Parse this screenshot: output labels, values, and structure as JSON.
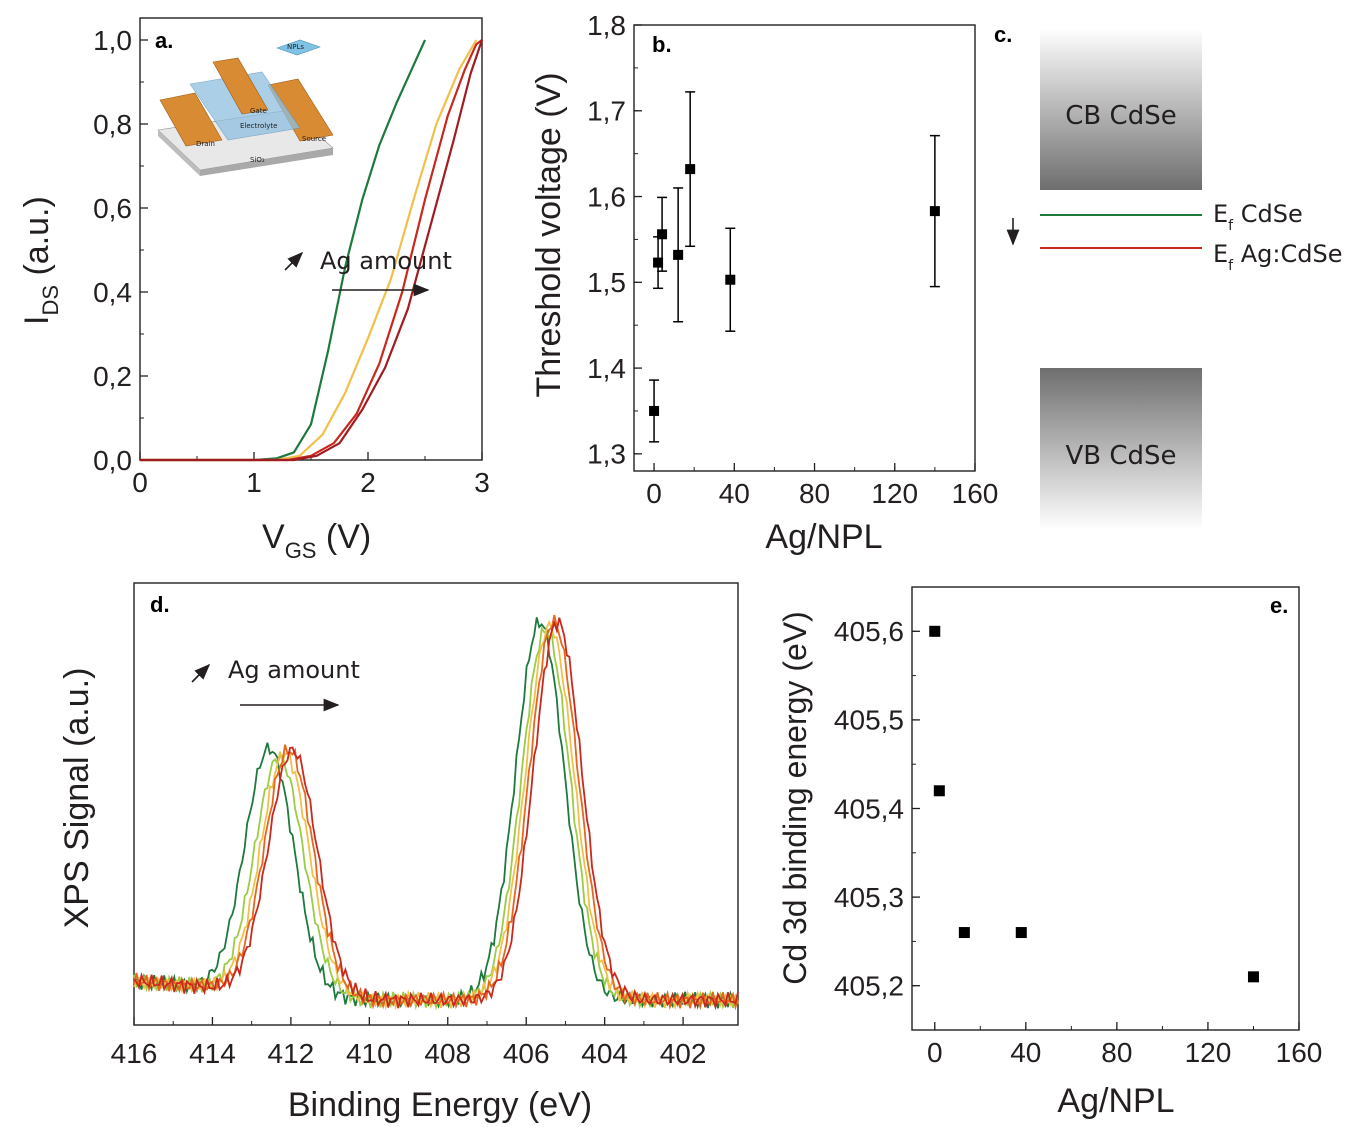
{
  "colors": {
    "axis": "#231f20",
    "green": "#1d7a3c",
    "yellow": "#f2c04a",
    "red": "#c8281e",
    "darkred": "#a01c22",
    "lightgreen": "#9ccc45",
    "orange": "#e6661e"
  },
  "panel_a": {
    "label": "a.",
    "annotation": "Ag amount",
    "annotation_icon": "arrow-up-right-icon",
    "inset": {
      "npls_label": "NPLs",
      "gate_label": "Gate",
      "electrolyte_label": "Electrolyte",
      "drain_label": "Drain",
      "source_label": "Source",
      "substrate_label": "SiO₂"
    },
    "xlabel_main": "V",
    "xlabel_sub": "GS",
    "xlabel_unit": " (V)",
    "ylabel_main": "I",
    "ylabel_sub": "DS",
    "ylabel_unit": " (a.u.)"
  },
  "panel_b": {
    "label": "b.",
    "xlabel": "Ag/NPL",
    "ylabel": "Threshold voltage (V)"
  },
  "panel_c": {
    "label": "c.",
    "cb_label": "CB CdSe",
    "vb_label": "VB CdSe",
    "ef1_main": "E",
    "ef1_sub": "f",
    "ef1_text": " CdSe",
    "ef2_main": "E",
    "ef2_sub": "f",
    "ef2_text": " Ag:CdSe",
    "shift_icon": "arrow-down-icon"
  },
  "panel_d": {
    "label": "d.",
    "annotation": "Ag amount",
    "annotation_icon": "arrow-up-right-icon",
    "xlabel": "Binding Energy (eV)",
    "ylabel": "XPS Signal (a.u.)"
  },
  "panel_e": {
    "label": "e.",
    "xlabel": "Ag/NPL",
    "ylabel": "Cd 3d binding energy (eV)"
  },
  "chart_data": [
    {
      "panel": "a",
      "type": "line",
      "xlim": [
        0,
        3
      ],
      "ylim": [
        0,
        1
      ],
      "x_ticks": [
        "0",
        "1",
        "2",
        "3"
      ],
      "y_ticks": [
        "0,0",
        "0,2",
        "0,4",
        "0,6",
        "0,8",
        "1,0"
      ],
      "series": [
        {
          "color": "green",
          "values": [
            [
              0,
              0
            ],
            [
              1,
              0
            ],
            [
              1.2,
              0.004
            ],
            [
              1.35,
              0.018
            ],
            [
              1.5,
              0.085
            ],
            [
              1.65,
              0.26
            ],
            [
              1.8,
              0.46
            ],
            [
              1.95,
              0.62
            ],
            [
              2.1,
              0.75
            ],
            [
              2.25,
              0.85
            ],
            [
              2.4,
              0.94
            ],
            [
              2.5,
              1.0
            ]
          ]
        },
        {
          "color": "yellow",
          "values": [
            [
              0,
              0
            ],
            [
              1.2,
              0
            ],
            [
              1.4,
              0.01
            ],
            [
              1.6,
              0.06
            ],
            [
              1.8,
              0.16
            ],
            [
              2.0,
              0.29
            ],
            [
              2.2,
              0.43
            ],
            [
              2.4,
              0.62
            ],
            [
              2.6,
              0.8
            ],
            [
              2.8,
              0.93
            ],
            [
              2.95,
              1.0
            ]
          ]
        },
        {
          "color": "red",
          "values": [
            [
              0,
              0
            ],
            [
              1.3,
              0
            ],
            [
              1.5,
              0.01
            ],
            [
              1.7,
              0.04
            ],
            [
              1.9,
              0.11
            ],
            [
              2.1,
              0.23
            ],
            [
              2.3,
              0.4
            ],
            [
              2.5,
              0.62
            ],
            [
              2.7,
              0.82
            ],
            [
              2.85,
              0.93
            ],
            [
              2.95,
              0.99
            ],
            [
              3.0,
              1.0
            ]
          ]
        },
        {
          "color": "darkred",
          "values": [
            [
              0,
              0
            ],
            [
              1.35,
              0
            ],
            [
              1.55,
              0.01
            ],
            [
              1.75,
              0.04
            ],
            [
              1.95,
              0.12
            ],
            [
              2.15,
              0.22
            ],
            [
              2.35,
              0.36
            ],
            [
              2.55,
              0.56
            ],
            [
              2.75,
              0.76
            ],
            [
              2.9,
              0.92
            ],
            [
              3.0,
              1.0
            ]
          ]
        }
      ]
    },
    {
      "panel": "b",
      "type": "scatter",
      "xlim": [
        -10,
        160
      ],
      "ylim": [
        1.28,
        1.8
      ],
      "x_ticks": [
        "0",
        "40",
        "80",
        "120",
        "160"
      ],
      "y_ticks": [
        "1,3",
        "1,4",
        "1,5",
        "1,6",
        "1,7",
        "1,8"
      ],
      "points": [
        {
          "x": 0,
          "y": 1.35,
          "err": 0.036
        },
        {
          "x": 2,
          "y": 1.523,
          "err": 0.03
        },
        {
          "x": 4,
          "y": 1.556,
          "err": 0.043
        },
        {
          "x": 12,
          "y": 1.532,
          "err": 0.078
        },
        {
          "x": 18,
          "y": 1.632,
          "err": 0.09
        },
        {
          "x": 38,
          "y": 1.503,
          "err": 0.06
        },
        {
          "x": 140,
          "y": 1.583,
          "err": 0.088
        }
      ]
    },
    {
      "panel": "d",
      "type": "line",
      "xlim": [
        416,
        400.6
      ],
      "x_ticks": [
        "416",
        "414",
        "412",
        "410",
        "408",
        "406",
        "404",
        "402"
      ],
      "series": [
        {
          "color": "green",
          "peak1": 412.55,
          "peak2": 405.65,
          "h1": 0.58,
          "h2": 0.9
        },
        {
          "color": "lightgreen",
          "peak1": 412.3,
          "peak2": 405.5,
          "h1": 0.56,
          "h2": 0.88
        },
        {
          "color": "yellow",
          "peak1": 412.15,
          "peak2": 405.4,
          "h1": 0.57,
          "h2": 0.89
        },
        {
          "color": "orange",
          "peak1": 412.05,
          "peak2": 405.3,
          "h1": 0.58,
          "h2": 0.9
        },
        {
          "color": "red",
          "peak1": 411.95,
          "peak2": 405.2,
          "h1": 0.58,
          "h2": 0.9
        }
      ]
    },
    {
      "panel": "e",
      "type": "scatter",
      "xlim": [
        -10,
        160
      ],
      "ylim": [
        405.15,
        405.65
      ],
      "x_ticks": [
        "0",
        "40",
        "80",
        "120",
        "160"
      ],
      "y_ticks": [
        "405,2",
        "405,3",
        "405,4",
        "405,5",
        "405,6"
      ],
      "points": [
        {
          "x": 0,
          "y": 405.6
        },
        {
          "x": 2,
          "y": 405.42
        },
        {
          "x": 13,
          "y": 405.26
        },
        {
          "x": 38,
          "y": 405.26
        },
        {
          "x": 140,
          "y": 405.21
        }
      ]
    }
  ]
}
